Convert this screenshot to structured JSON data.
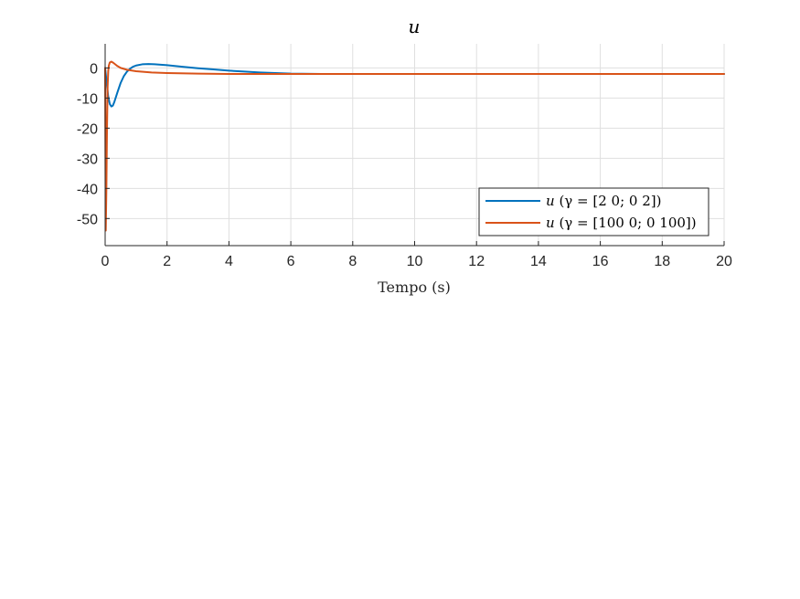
{
  "chart_data": {
    "type": "line",
    "title": "u",
    "xlabel": "Tempo (s)",
    "ylabel": "",
    "xlim": [
      0,
      20
    ],
    "ylim": [
      -59,
      8
    ],
    "xticks": [
      0,
      2,
      4,
      6,
      8,
      10,
      12,
      14,
      16,
      18,
      20
    ],
    "yticks": [
      0,
      -10,
      -20,
      -30,
      -40,
      -50
    ],
    "grid": true,
    "legend_position": "bottom-right",
    "series": [
      {
        "name": "u (γ = [2 0; 0 2])",
        "color": "#0072BD",
        "x": [
          0,
          0.05,
          0.1,
          0.15,
          0.2,
          0.25,
          0.3,
          0.4,
          0.5,
          0.6,
          0.7,
          0.8,
          0.9,
          1.0,
          1.2,
          1.4,
          1.6,
          2.0,
          2.5,
          3.0,
          3.5,
          4.0,
          4.5,
          5.0,
          5.5,
          6.0,
          7.0,
          8.0,
          10.0,
          12.0,
          14.0,
          16.0,
          18.0,
          20.0
        ],
        "y": [
          0,
          -5,
          -9.5,
          -12,
          -12.8,
          -12.5,
          -11.2,
          -8,
          -5,
          -2.8,
          -1.3,
          -0.3,
          0.4,
          0.8,
          1.2,
          1.3,
          1.2,
          0.9,
          0.4,
          -0.1,
          -0.5,
          -0.9,
          -1.2,
          -1.5,
          -1.7,
          -1.9,
          -2.0,
          -2.0,
          -2.0,
          -2.0,
          -2.0,
          -2.0,
          -2.0,
          -2.0
        ]
      },
      {
        "name": "u (γ = [100 0; 0 100])",
        "color": "#D95319",
        "x": [
          0,
          0.02,
          0.04,
          0.06,
          0.08,
          0.1,
          0.12,
          0.15,
          0.2,
          0.25,
          0.3,
          0.4,
          0.5,
          0.7,
          1.0,
          1.5,
          2.0,
          3.0,
          4.0,
          5.0,
          6.0,
          8.0,
          10.0,
          12.0,
          14.0,
          16.0,
          18.0,
          20.0
        ],
        "y": [
          0,
          -54,
          -40,
          -20,
          -6,
          -1,
          0.8,
          1.8,
          2.1,
          1.8,
          1.4,
          0.6,
          0,
          -0.6,
          -1.1,
          -1.5,
          -1.7,
          -1.9,
          -2.0,
          -2.0,
          -2.0,
          -2.0,
          -2.0,
          -2.0,
          -2.0,
          -2.0,
          -2.0,
          -2.0
        ]
      }
    ]
  },
  "legend": {
    "entries": [
      {
        "var": "u",
        "rest": " (γ = [2 0; 0 2])"
      },
      {
        "var": "u",
        "rest": " (γ = [100 0; 0 100])"
      }
    ]
  }
}
